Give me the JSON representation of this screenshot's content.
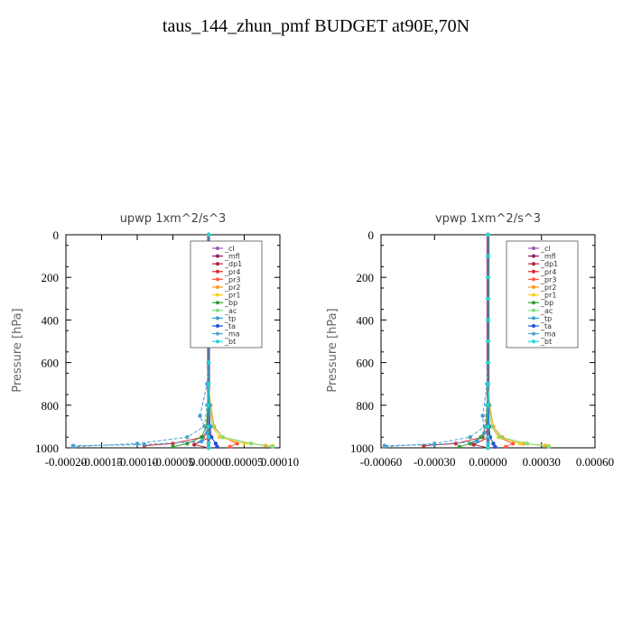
{
  "title": "taus_144_zhun_pmf  BUDGET at90E,70N",
  "chart_data": [
    {
      "type": "line",
      "title": "upwp   1xm^2/s^3",
      "ylabel": "Pressure [hPa]",
      "xlim": [
        -0.0002,
        0.0001
      ],
      "ylim": [
        1000,
        0
      ],
      "y_inverted": true,
      "xticks": [
        -0.0002,
        -0.00015,
        -0.0001,
        -5e-05,
        0.0,
        5e-05,
        0.0001
      ],
      "xtick_labels": [
        "-0.00020",
        "-0.00015",
        "-0.00010",
        "-0.00005",
        "0.00000",
        "0.00005",
        "0.00010"
      ],
      "yticks": [
        0,
        200,
        400,
        600,
        800,
        1000
      ],
      "ytick_labels": [
        "0",
        "200",
        "400",
        "600",
        "800",
        "1000"
      ],
      "legend_position": "top-right",
      "series": [
        {
          "name": "_cl",
          "color": "#9b59b6",
          "x": [
            0,
            0,
            0,
            0,
            0,
            0,
            0,
            0,
            0,
            0,
            0,
            0,
            0
          ],
          "y": [
            0,
            100,
            200,
            300,
            400,
            500,
            600,
            700,
            800,
            900,
            950,
            980,
            1000
          ]
        },
        {
          "name": "_mfl",
          "color": "#8e1e5c",
          "x": [
            0,
            0,
            0,
            0,
            0,
            0,
            0,
            0,
            0,
            0,
            0,
            0,
            0
          ],
          "y": [
            0,
            100,
            200,
            300,
            400,
            500,
            600,
            700,
            800,
            900,
            950,
            980,
            1000
          ]
        },
        {
          "name": "_dp1",
          "color": "#b0283c",
          "x": [
            0,
            0,
            0,
            0,
            0,
            0,
            0,
            0,
            5e-07,
            1e-06,
            2e-06,
            -2e-05,
            0
          ],
          "y": [
            0,
            100,
            200,
            300,
            400,
            500,
            600,
            700,
            800,
            900,
            950,
            985,
            1000
          ]
        },
        {
          "name": "_pr4",
          "color": "#d92b2b",
          "x": [
            0,
            0,
            0,
            0,
            0,
            0,
            0,
            0,
            1e-06,
            2e-06,
            -8e-06,
            -5e-05,
            -9e-05
          ],
          "y": [
            0,
            100,
            200,
            300,
            400,
            500,
            600,
            700,
            800,
            900,
            950,
            980,
            990
          ]
        },
        {
          "name": "_pr3",
          "color": "#ff5a3c",
          "x": [
            0,
            0,
            0,
            0,
            0,
            0,
            0,
            0,
            2e-06,
            6e-06,
            2e-05,
            4e-05,
            3e-05
          ],
          "y": [
            0,
            100,
            200,
            300,
            400,
            500,
            600,
            700,
            800,
            900,
            950,
            980,
            995
          ]
        },
        {
          "name": "_pr2",
          "color": "#ff9a1f",
          "x": [
            0,
            0,
            0,
            0,
            0,
            0,
            0,
            0,
            3e-06,
            8e-06,
            2e-05,
            6e-05,
            8e-05
          ],
          "y": [
            0,
            100,
            200,
            300,
            400,
            500,
            600,
            700,
            800,
            900,
            950,
            980,
            990
          ]
        },
        {
          "name": "_pr1",
          "color": "#f3d21a",
          "x": [
            0,
            0,
            0,
            0,
            0,
            0,
            0,
            0,
            2e-06,
            5e-06,
            1.5e-05,
            5e-05,
            9e-05
          ],
          "y": [
            0,
            100,
            200,
            300,
            400,
            500,
            600,
            700,
            800,
            900,
            950,
            980,
            990
          ]
        },
        {
          "name": "_bp",
          "color": "#2e9e2e",
          "x": [
            0,
            0,
            0,
            0,
            0,
            0,
            0,
            0,
            -1e-06,
            -3e-06,
            -1e-05,
            -3e-05,
            -5e-05
          ],
          "y": [
            0,
            100,
            200,
            300,
            400,
            500,
            600,
            700,
            800,
            900,
            950,
            980,
            995
          ]
        },
        {
          "name": "_ac",
          "color": "#7fe07f",
          "x": [
            0,
            0,
            0,
            0,
            0,
            0,
            0,
            0,
            2e-06,
            6e-06,
            2e-05,
            6e-05,
            9e-05
          ],
          "y": [
            0,
            100,
            200,
            300,
            400,
            500,
            600,
            700,
            800,
            900,
            950,
            980,
            995
          ]
        },
        {
          "name": "_tp",
          "color": "#3a9bd9",
          "x": [
            0,
            0,
            0,
            0,
            0,
            0,
            0,
            -2e-06,
            -1.2e-05,
            -2e-06,
            -1e-05,
            -9e-05,
            -0.00019
          ],
          "y": [
            0,
            100,
            200,
            300,
            400,
            500,
            600,
            700,
            850,
            930,
            970,
            985,
            990
          ]
        },
        {
          "name": "_ta",
          "color": "#1f4fd6",
          "x": [
            0,
            0,
            0,
            0,
            0,
            0,
            0,
            0,
            1e-06,
            2e-06,
            4e-06,
            1e-05,
            1.2e-05
          ],
          "y": [
            0,
            100,
            200,
            300,
            400,
            500,
            600,
            700,
            800,
            900,
            950,
            980,
            995
          ]
        },
        {
          "name": "_ma",
          "color": "#4fa3c7",
          "x": [
            0,
            0,
            0,
            0,
            0,
            0,
            0,
            0,
            -2e-06,
            -6e-06,
            -3e-05,
            -0.0001,
            -0.00019
          ],
          "y": [
            0,
            100,
            200,
            300,
            400,
            500,
            600,
            700,
            800,
            900,
            950,
            980,
            995
          ]
        },
        {
          "name": "_bt",
          "color": "#1fd6d6",
          "x": [
            0,
            0,
            0,
            0,
            0,
            0,
            0,
            0,
            0,
            0,
            0,
            0,
            0
          ],
          "y": [
            0,
            100,
            200,
            300,
            400,
            500,
            600,
            700,
            800,
            900,
            950,
            980,
            1000
          ]
        }
      ]
    },
    {
      "type": "line",
      "title": "vpwp   1xm^2/s^3",
      "ylabel": "Pressure [hPa]",
      "xlim": [
        -0.0006,
        0.0006
      ],
      "ylim": [
        1000,
        0
      ],
      "y_inverted": true,
      "xticks": [
        -0.0006,
        -0.0003,
        0.0,
        0.0003,
        0.0006
      ],
      "xtick_labels": [
        "-0.00060",
        "-0.00030",
        "0.00000",
        "0.00030",
        "0.00060"
      ],
      "yticks": [
        0,
        200,
        400,
        600,
        800,
        1000
      ],
      "ytick_labels": [
        "0",
        "200",
        "400",
        "600",
        "800",
        "1000"
      ],
      "legend_position": "top-right",
      "series": [
        {
          "name": "_cl",
          "color": "#9b59b6",
          "x": [
            0,
            0,
            0,
            0,
            0,
            0,
            0,
            0,
            0,
            0,
            0,
            0,
            0
          ],
          "y": [
            0,
            100,
            200,
            300,
            400,
            500,
            600,
            700,
            800,
            900,
            950,
            980,
            1000
          ]
        },
        {
          "name": "_mfl",
          "color": "#8e1e5c",
          "x": [
            0,
            0,
            0,
            0,
            0,
            0,
            0,
            0,
            0,
            0,
            0,
            0,
            0
          ],
          "y": [
            0,
            100,
            200,
            300,
            400,
            500,
            600,
            700,
            800,
            900,
            950,
            980,
            1000
          ]
        },
        {
          "name": "_dp1",
          "color": "#b0283c",
          "x": [
            0,
            0,
            0,
            0,
            0,
            0,
            0,
            0,
            0,
            3e-06,
            5e-06,
            -8e-05,
            0
          ],
          "y": [
            0,
            100,
            200,
            300,
            400,
            500,
            600,
            700,
            800,
            900,
            950,
            985,
            1000
          ]
        },
        {
          "name": "_pr4",
          "color": "#d92b2b",
          "x": [
            0,
            0,
            0,
            0,
            0,
            0,
            0,
            0,
            3e-06,
            6e-06,
            -3e-05,
            -0.00018,
            -0.00036
          ],
          "y": [
            0,
            100,
            200,
            300,
            400,
            500,
            600,
            700,
            800,
            900,
            950,
            980,
            990
          ]
        },
        {
          "name": "_pr3",
          "color": "#ff5a3c",
          "x": [
            0,
            0,
            0,
            0,
            0,
            0,
            0,
            0,
            6e-06,
            2e-05,
            6e-05,
            0.00014,
            0.0001
          ],
          "y": [
            0,
            100,
            200,
            300,
            400,
            500,
            600,
            700,
            800,
            900,
            950,
            980,
            995
          ]
        },
        {
          "name": "_pr2",
          "color": "#ff9a1f",
          "x": [
            0,
            0,
            0,
            0,
            0,
            0,
            0,
            0,
            1e-05,
            3e-05,
            8e-05,
            0.0002,
            0.00032
          ],
          "y": [
            0,
            100,
            200,
            300,
            400,
            500,
            600,
            700,
            800,
            900,
            950,
            980,
            990
          ]
        },
        {
          "name": "_pr1",
          "color": "#f3d21a",
          "x": [
            0,
            0,
            0,
            0,
            0,
            0,
            0,
            0,
            8e-06,
            2e-05,
            6e-05,
            0.00018,
            0.00034
          ],
          "y": [
            0,
            100,
            200,
            300,
            400,
            500,
            600,
            700,
            800,
            900,
            950,
            980,
            990
          ]
        },
        {
          "name": "_bp",
          "color": "#2e9e2e",
          "x": [
            0,
            0,
            0,
            0,
            0,
            0,
            0,
            0,
            -4e-06,
            -1e-05,
            -4e-05,
            -0.0001,
            -0.00016
          ],
          "y": [
            0,
            100,
            200,
            300,
            400,
            500,
            600,
            700,
            800,
            900,
            950,
            980,
            995
          ]
        },
        {
          "name": "_ac",
          "color": "#7fe07f",
          "x": [
            0,
            0,
            0,
            0,
            0,
            0,
            0,
            0,
            8e-06,
            2e-05,
            7e-05,
            0.00022,
            0.00034
          ],
          "y": [
            0,
            100,
            200,
            300,
            400,
            500,
            600,
            700,
            800,
            900,
            950,
            980,
            995
          ]
        },
        {
          "name": "_tp",
          "color": "#3a9bd9",
          "x": [
            0,
            0,
            0,
            0,
            0,
            0,
            0,
            -5e-06,
            -3e-05,
            -2e-05,
            -6e-05,
            -0.0003,
            -0.00058
          ],
          "y": [
            0,
            100,
            200,
            300,
            400,
            500,
            600,
            700,
            850,
            930,
            970,
            985,
            990
          ]
        },
        {
          "name": "_ta",
          "color": "#1f4fd6",
          "x": [
            0,
            0,
            0,
            0,
            0,
            0,
            0,
            0,
            3e-06,
            6e-06,
            1.2e-05,
            3e-05,
            4e-05
          ],
          "y": [
            0,
            100,
            200,
            300,
            400,
            500,
            600,
            700,
            800,
            900,
            950,
            980,
            995
          ]
        },
        {
          "name": "_ma",
          "color": "#4fa3c7",
          "x": [
            0,
            0,
            0,
            0,
            0,
            0,
            0,
            0,
            -6e-06,
            -2e-05,
            -0.0001,
            -0.0003,
            -0.00058
          ],
          "y": [
            0,
            100,
            200,
            300,
            400,
            500,
            600,
            700,
            800,
            900,
            950,
            980,
            995
          ]
        },
        {
          "name": "_bt",
          "color": "#1fd6d6",
          "x": [
            0,
            0,
            0,
            0,
            0,
            0,
            0,
            0,
            0,
            0,
            0,
            0,
            0
          ],
          "y": [
            0,
            100,
            200,
            300,
            400,
            500,
            600,
            700,
            800,
            900,
            950,
            980,
            1000
          ]
        }
      ]
    }
  ]
}
